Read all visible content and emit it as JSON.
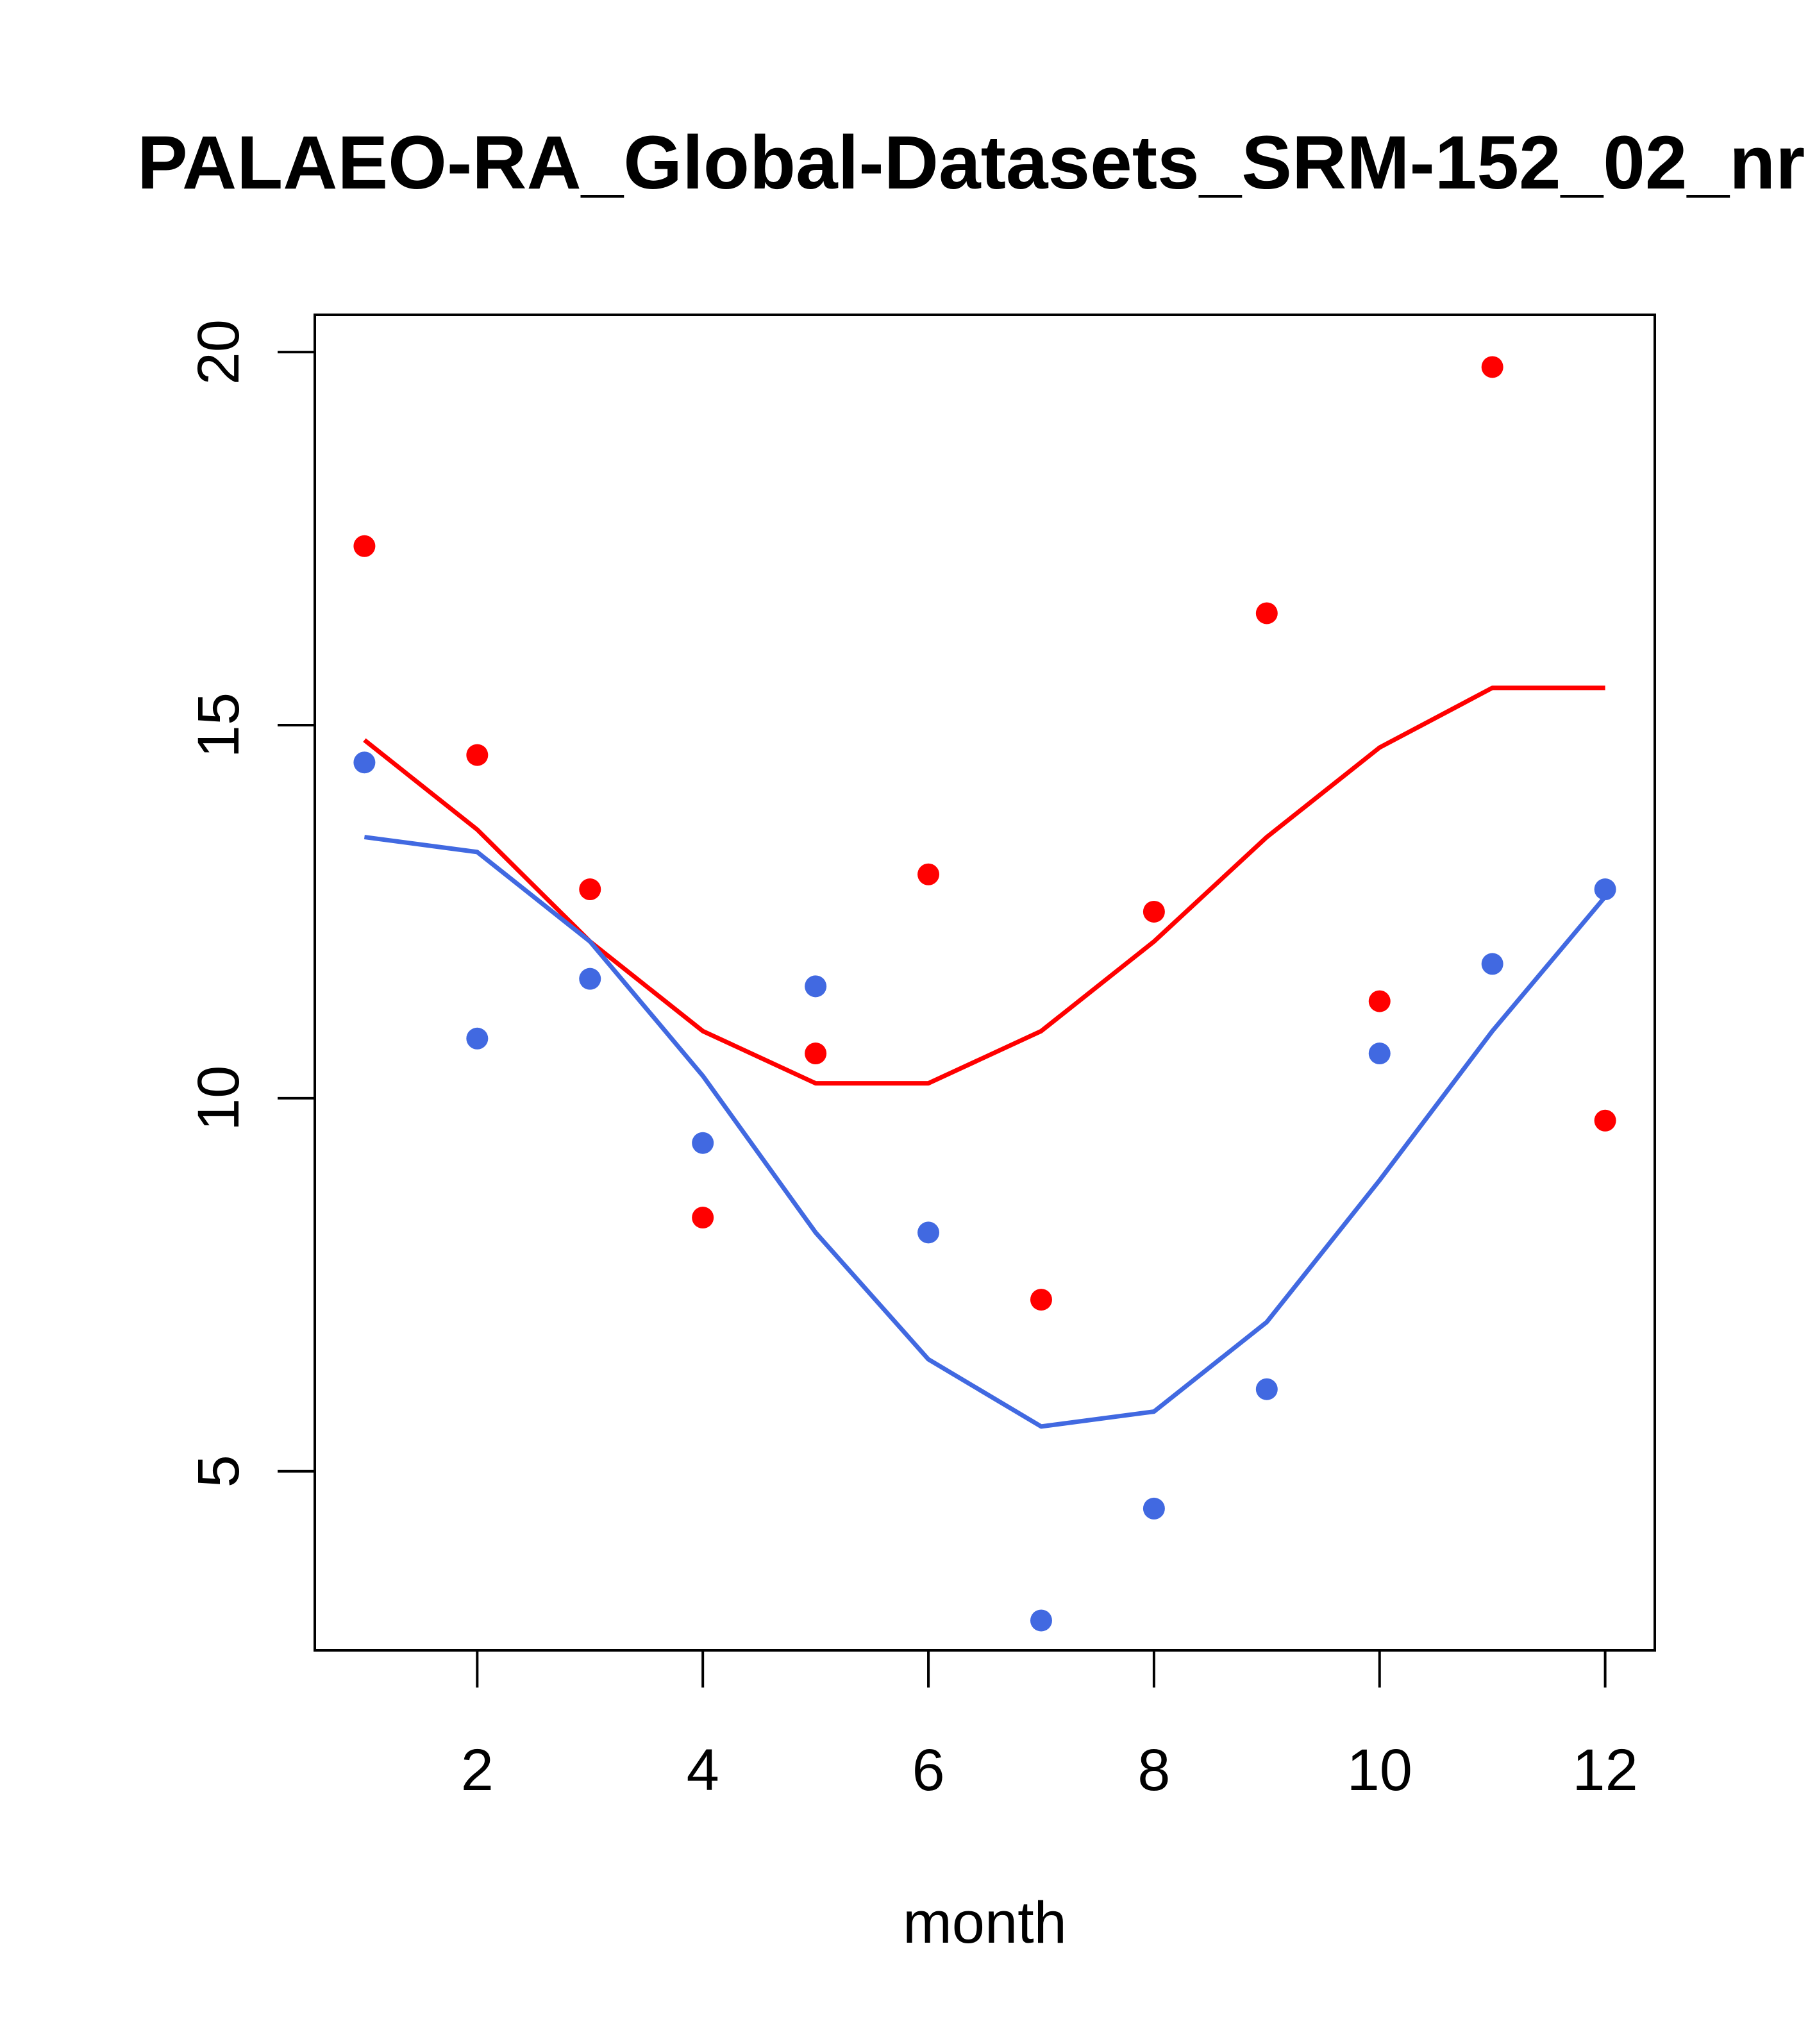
{
  "chart_data": {
    "type": "scatter",
    "title": "PALAEO-RA_Global-Datasets_SRM-152_02_nr",
    "xlabel": "month",
    "ylabel": "",
    "xlim": [
      0.56,
      12.44
    ],
    "ylim": [
      2.6,
      20.5
    ],
    "x_ticks": [
      2,
      4,
      6,
      8,
      10,
      12
    ],
    "y_ticks": [
      5,
      10,
      15,
      20
    ],
    "x": [
      1,
      2,
      3,
      4,
      5,
      6,
      7,
      8,
      9,
      10,
      11,
      12
    ],
    "series": [
      {
        "kind": "points",
        "color": "#ff0000",
        "values": [
          17.4,
          14.6,
          12.8,
          8.4,
          10.6,
          13.0,
          7.3,
          12.5,
          16.5,
          11.3,
          19.8,
          9.7
        ]
      },
      {
        "kind": "line",
        "color": "#ff0000",
        "values": [
          14.8,
          13.6,
          12.1,
          10.9,
          10.2,
          10.2,
          10.9,
          12.1,
          13.5,
          14.7,
          15.5,
          15.5
        ]
      },
      {
        "kind": "points",
        "color": "#4169e1",
        "values": [
          14.5,
          10.8,
          11.6,
          9.4,
          11.5,
          8.2,
          3.0,
          4.5,
          6.1,
          10.6,
          11.8,
          12.8
        ]
      },
      {
        "kind": "line",
        "color": "#4169e1",
        "values": [
          13.5,
          13.3,
          12.1,
          10.3,
          8.2,
          6.5,
          5.6,
          5.8,
          7.0,
          8.9,
          10.9,
          12.7
        ]
      }
    ]
  }
}
